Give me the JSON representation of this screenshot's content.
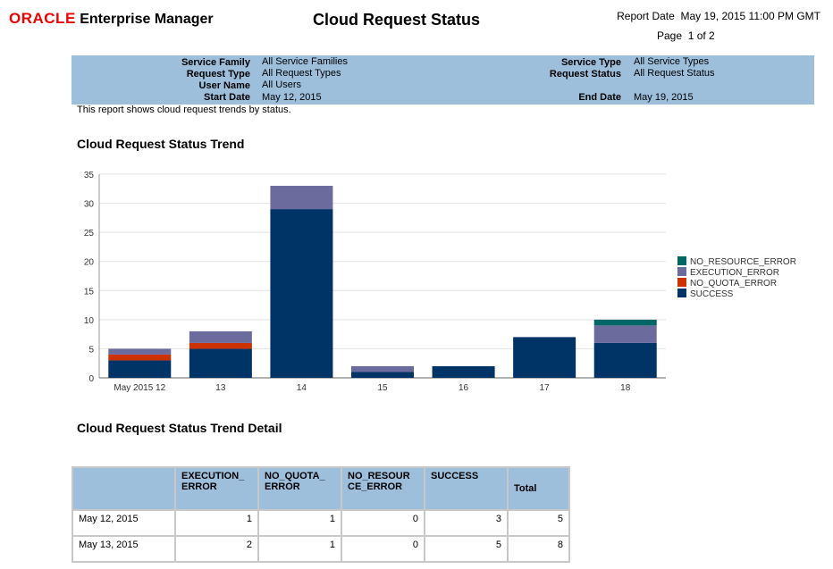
{
  "header": {
    "logo_brand": "ORACLE",
    "logo_product": "Enterprise Manager",
    "title": "Cloud Request Status",
    "report_date_label": "Report Date",
    "report_date": "May 19, 2015 11:00 PM GMT",
    "page_label": "Page",
    "page": "1 of 2"
  },
  "params": {
    "left": [
      {
        "label": "Service Family",
        "value": "All Service Families"
      },
      {
        "label": "Request Type",
        "value": "All Request Types"
      },
      {
        "label": "User Name",
        "value": "All Users"
      },
      {
        "label": "Start Date",
        "value": "May 12, 2015"
      }
    ],
    "right": [
      {
        "label": "Service Type",
        "value": "All Service Types"
      },
      {
        "label": "Request Status",
        "value": "All Request Status"
      },
      {
        "label": "End Date",
        "value": "May 19, 2015"
      }
    ]
  },
  "description": "This report shows cloud request trends by status.",
  "chart_title": "Cloud Request Status Trend",
  "chart_data": {
    "type": "bar",
    "stacked": true,
    "categories": [
      "May 2015 12",
      "13",
      "14",
      "15",
      "16",
      "17",
      "18"
    ],
    "series": [
      {
        "name": "SUCCESS",
        "color": "#003366",
        "values": [
          3,
          5,
          29,
          1,
          2,
          7,
          6
        ]
      },
      {
        "name": "NO_QUOTA_ERROR",
        "color": "#cc3300",
        "values": [
          1,
          1,
          0,
          0,
          0,
          0,
          0
        ]
      },
      {
        "name": "EXECUTION_ERROR",
        "color": "#6b6b9e",
        "values": [
          1,
          2,
          4,
          1,
          0,
          0,
          3
        ]
      },
      {
        "name": "NO_RESOURCE_ERROR",
        "color": "#006666",
        "values": [
          0,
          0,
          0,
          0,
          0,
          0,
          1
        ]
      }
    ],
    "legend_order": [
      "NO_RESOURCE_ERROR",
      "EXECUTION_ERROR",
      "NO_QUOTA_ERROR",
      "SUCCESS"
    ],
    "ylim": [
      0,
      35
    ],
    "yticks": [
      0,
      5,
      10,
      15,
      20,
      25,
      30,
      35
    ],
    "grid": true,
    "legend": "right"
  },
  "detail_title": "Cloud Request Status Trend Detail",
  "table": {
    "headers": [
      "",
      "EXECUTION_\nERROR",
      "NO_QUOTA_\nERROR",
      "NO_RESOUR\nCE_ERROR",
      "SUCCESS",
      "Total"
    ],
    "rows": [
      [
        "May 12, 2015",
        "1",
        "1",
        "0",
        "3",
        "5"
      ],
      [
        "May 13, 2015",
        "2",
        "1",
        "0",
        "5",
        "8"
      ]
    ]
  }
}
